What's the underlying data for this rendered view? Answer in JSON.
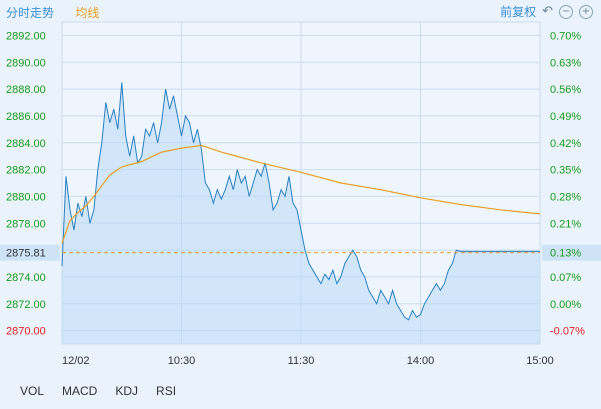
{
  "header": {
    "tab_fenshi": "分时走势",
    "tab_junxian": "均线",
    "adjust_label": "前复权",
    "undo_icon": "undo-icon",
    "zoom_out_icon": "zoom-out-icon",
    "zoom_in_icon": "zoom-in-icon"
  },
  "indicator_tabs": [
    "VOL",
    "MACD",
    "KDJ",
    "RSI"
  ],
  "colors": {
    "price_line": "#2a7fc4",
    "avg_line": "#e8a020",
    "area_fill": "#b9d9f6",
    "ref_line": "#f09a30",
    "up_text": "#1a9a1a",
    "down_text": "#e02020",
    "grid": "#ccdceb"
  },
  "chart_data": {
    "type": "line",
    "title": "",
    "xlabel": "",
    "ylabel": "",
    "x_ticks": [
      "12/02",
      "10:30",
      "11:30",
      "14:00",
      "15:00"
    ],
    "y_ticks": [
      "2892.00",
      "2890.00",
      "2888.00",
      "2886.00",
      "2884.00",
      "2882.00",
      "2880.00",
      "2878.00",
      "2876.00",
      "2874.00",
      "2872.00",
      "2870.00"
    ],
    "y_right_ticks": [
      "0.70%",
      "0.63%",
      "0.56%",
      "0.49%",
      "0.42%",
      "0.35%",
      "0.28%",
      "0.21%",
      "0.13%",
      "0.07%",
      "0.00%",
      "-0.07%"
    ],
    "ylim": [
      2869,
      2893
    ],
    "reference_price": 2875.81,
    "reference_label": "2875.81",
    "reference_pct_label": "0.13%",
    "minutes_total": 240,
    "series": [
      {
        "kind": "price",
        "x": [
          0,
          2,
          4,
          6,
          8,
          10,
          12,
          14,
          16,
          18,
          20,
          22,
          24,
          26,
          28,
          30,
          32,
          34,
          36,
          38,
          40,
          42,
          44,
          46,
          48,
          50,
          52,
          54,
          56,
          58,
          60,
          62,
          64,
          66,
          68,
          70,
          72,
          74,
          76,
          78,
          80,
          82,
          84,
          86,
          88,
          90,
          92,
          94,
          96,
          98,
          100,
          102,
          104,
          106,
          108,
          110,
          112,
          114,
          116,
          118,
          120,
          122,
          124,
          126,
          128,
          130,
          132,
          134,
          136,
          138,
          140,
          142,
          144,
          146,
          148,
          150,
          152,
          154,
          156,
          158,
          160,
          162,
          164,
          166,
          168,
          170,
          172,
          174,
          176,
          178,
          180,
          182,
          184,
          186,
          188,
          190,
          192,
          194,
          196,
          198,
          200,
          202,
          204,
          206,
          208,
          210,
          212,
          214,
          216,
          218,
          220,
          222,
          224,
          226,
          228,
          230,
          232,
          234,
          236,
          238,
          240
        ],
        "y": [
          2874.8,
          2881.5,
          2879.0,
          2877.5,
          2879.5,
          2878.5,
          2880.0,
          2878.0,
          2879.0,
          2882.0,
          2884.0,
          2887.0,
          2885.5,
          2886.5,
          2885.0,
          2888.5,
          2884.5,
          2883.0,
          2884.5,
          2882.5,
          2883.0,
          2885.0,
          2884.5,
          2885.5,
          2884.0,
          2885.5,
          2888.0,
          2886.5,
          2887.5,
          2886.0,
          2884.5,
          2886.0,
          2885.5,
          2884.0,
          2885.0,
          2883.5,
          2881.0,
          2880.5,
          2879.5,
          2880.5,
          2879.8,
          2880.5,
          2881.5,
          2880.5,
          2882.0,
          2881.0,
          2881.5,
          2880.0,
          2881.0,
          2882.0,
          2881.5,
          2882.5,
          2881.0,
          2879.0,
          2879.5,
          2880.5,
          2880.0,
          2881.5,
          2879.5,
          2879.0,
          2877.5,
          2876.0,
          2875.0,
          2874.5,
          2874.0,
          2873.5,
          2874.2,
          2873.8,
          2874.5,
          2873.5,
          2874.0,
          2875.0,
          2875.5,
          2876.0,
          2875.5,
          2874.5,
          2874.0,
          2873.0,
          2872.5,
          2872.0,
          2873.0,
          2872.5,
          2872.0,
          2873.0,
          2872.0,
          2871.5,
          2871.0,
          2870.8,
          2871.5,
          2871.0,
          2871.2,
          2872.0,
          2872.5,
          2873.0,
          2873.5,
          2873.0,
          2873.5,
          2874.5,
          2875.0,
          2876.0,
          2875.9,
          2875.9,
          2875.9,
          2875.9,
          2875.9,
          2875.9,
          2875.9,
          2875.9,
          2875.9,
          2875.9,
          2875.9,
          2875.9,
          2875.9,
          2875.9,
          2875.9,
          2875.9,
          2875.9,
          2875.9,
          2875.9,
          2875.9,
          2875.9
        ]
      },
      {
        "kind": "average",
        "x": [
          0,
          4,
          8,
          12,
          16,
          20,
          24,
          30,
          40,
          50,
          60,
          70,
          80,
          90,
          100,
          120,
          140,
          160,
          180,
          200,
          220,
          240
        ],
        "y": [
          2876.5,
          2878.2,
          2878.8,
          2879.3,
          2880.0,
          2880.8,
          2881.6,
          2882.2,
          2882.6,
          2883.3,
          2883.6,
          2883.8,
          2883.3,
          2882.9,
          2882.5,
          2881.8,
          2881.0,
          2880.5,
          2879.9,
          2879.4,
          2879.0,
          2878.7
        ]
      }
    ]
  }
}
